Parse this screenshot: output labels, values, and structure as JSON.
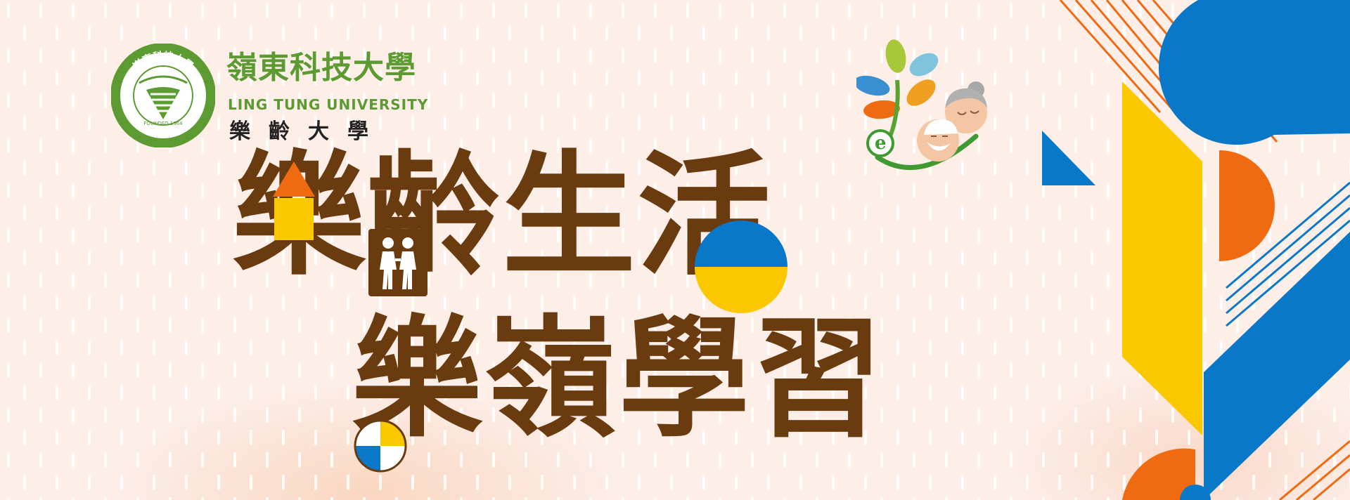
{
  "university": {
    "name_cn": "嶺東科技大學",
    "name_en": "LING TUNG UNIVERSITY",
    "sub_title": "樂齡大學",
    "seal_top": "嶺東科技大學",
    "seal_bottom": "LING TUNG UNIVERSITY",
    "seal_founded": "FOUNDED 1964"
  },
  "headline": {
    "line1": "樂齡生活",
    "line2": "樂嶺學習"
  },
  "colors": {
    "brown": "#6b3b10",
    "green": "#5c9a32",
    "blue": "#0a78c8",
    "yellow": "#fbc800",
    "orange": "#ef6a10",
    "background": "#fdeee8"
  },
  "icons": [
    "university-seal-icon",
    "elderly-learning-logo-icon",
    "two-people-icon"
  ]
}
